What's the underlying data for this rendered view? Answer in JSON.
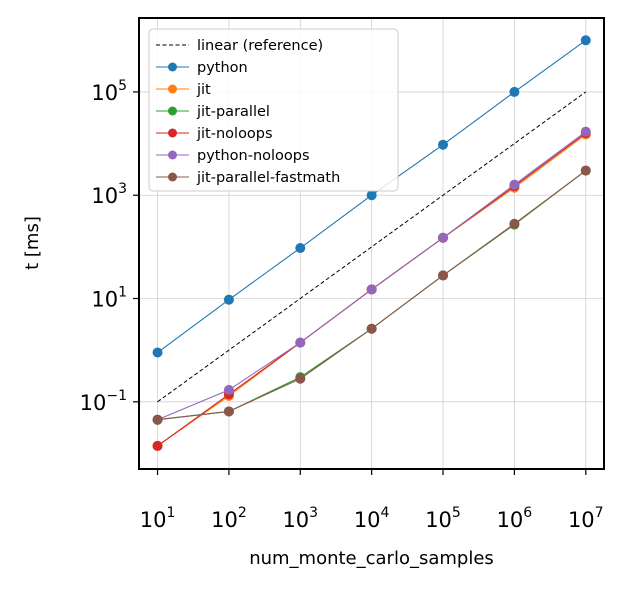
{
  "chart_data": {
    "type": "line",
    "xscale": "log",
    "yscale": "log",
    "xlabel": "num_monte_carlo_samples",
    "ylabel": "t [ms]",
    "xlim": [
      5.5,
      18000000
    ],
    "ylim": [
      0.005,
      2700000
    ],
    "grid": true,
    "legend_position": "top-left",
    "x": [
      10,
      100,
      1000,
      10000,
      100000,
      1000000,
      10000000
    ],
    "xticks": [
      {
        "base": "10",
        "exp": "1",
        "value": 10
      },
      {
        "base": "10",
        "exp": "2",
        "value": 100
      },
      {
        "base": "10",
        "exp": "3",
        "value": 1000
      },
      {
        "base": "10",
        "exp": "4",
        "value": 10000
      },
      {
        "base": "10",
        "exp": "5",
        "value": 100000
      },
      {
        "base": "10",
        "exp": "6",
        "value": 1000000
      },
      {
        "base": "10",
        "exp": "7",
        "value": 10000000
      }
    ],
    "yticks": [
      {
        "base": "10",
        "exp": "−1",
        "value": 0.1
      },
      {
        "base": "10",
        "exp": "1",
        "value": 10
      },
      {
        "base": "10",
        "exp": "3",
        "value": 1000
      },
      {
        "base": "10",
        "exp": "5",
        "value": 100000
      }
    ],
    "series": [
      {
        "name": "linear (reference)",
        "color": "#000000",
        "dashed": true,
        "marker": false,
        "values": [
          0.1,
          1,
          10,
          100,
          1000,
          10000,
          100000
        ]
      },
      {
        "name": "python",
        "color": "#1f77b4",
        "marker": true,
        "values": [
          0.9,
          9.5,
          95,
          1000,
          9500,
          100000,
          1000000
        ]
      },
      {
        "name": "jit",
        "color": "#ff7f0e",
        "marker": true,
        "values": [
          0.014,
          0.13,
          1.4,
          15,
          150,
          1400,
          15000
        ]
      },
      {
        "name": "jit-parallel",
        "color": "#2ca02c",
        "marker": true,
        "values": [
          0.045,
          0.065,
          0.3,
          2.6,
          28,
          270,
          3000
        ]
      },
      {
        "name": "jit-noloops",
        "color": "#d62728",
        "marker": true,
        "values": [
          0.014,
          0.14,
          1.4,
          15,
          150,
          1500,
          16000
        ]
      },
      {
        "name": "python-noloops",
        "color": "#9467bd",
        "marker": true,
        "values": [
          0.045,
          0.17,
          1.4,
          15,
          150,
          1600,
          17000
        ]
      },
      {
        "name": "jit-parallel-fastmath",
        "color": "#8c564b",
        "marker": true,
        "values": [
          0.045,
          0.065,
          0.28,
          2.6,
          28,
          280,
          3000
        ]
      }
    ]
  }
}
